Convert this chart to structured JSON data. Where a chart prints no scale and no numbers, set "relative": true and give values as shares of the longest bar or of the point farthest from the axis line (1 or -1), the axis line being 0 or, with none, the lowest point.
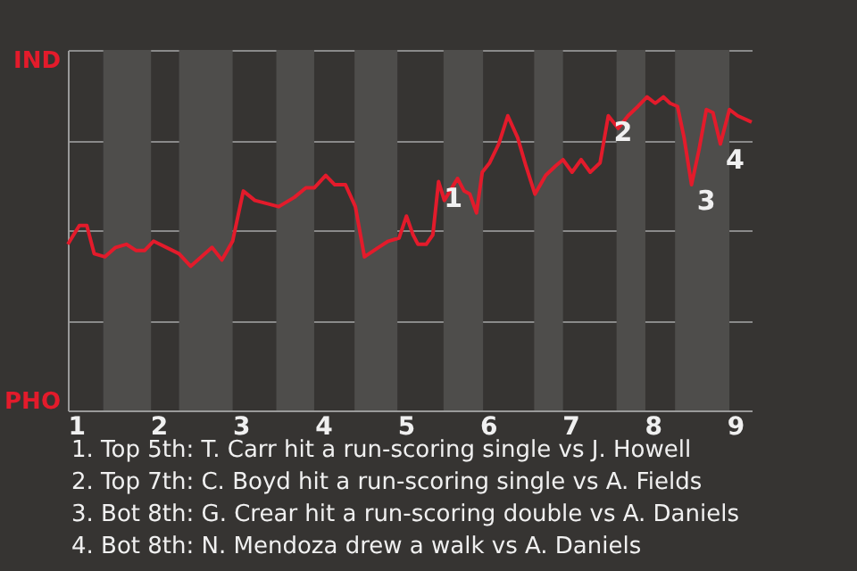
{
  "chart_data": {
    "type": "line",
    "relative": true,
    "x": [
      0.9,
      1.04,
      1.13,
      1.22,
      1.35,
      1.48,
      1.61,
      1.73,
      1.83,
      1.94,
      2.25,
      2.39,
      2.65,
      2.77,
      2.9,
      3.03,
      3.17,
      3.46,
      3.65,
      3.79,
      3.89,
      4.03,
      4.14,
      4.27,
      4.39,
      4.5,
      4.67,
      4.79,
      4.92,
      5.01,
      5.09,
      5.15,
      5.25,
      5.33,
      5.4,
      5.47,
      5.63,
      5.71,
      5.78,
      5.86,
      5.93,
      6.02,
      6.13,
      6.24,
      6.36,
      6.46,
      6.57,
      6.7,
      6.82,
      6.91,
      7.02,
      7.13,
      7.24,
      7.36,
      7.46,
      7.58,
      7.7,
      7.82,
      7.93,
      8.03,
      8.13,
      8.21,
      8.3,
      8.38,
      8.47,
      8.56,
      8.65,
      8.73,
      8.82,
      8.93,
      9.03,
      9.2
    ],
    "series": [
      {
        "color": "#e31b2b",
        "values": [
          0.53,
          0.59,
          0.59,
          0.5,
          0.49,
          0.52,
          0.53,
          0.51,
          0.51,
          0.54,
          0.5,
          0.46,
          0.52,
          0.48,
          0.54,
          0.7,
          0.67,
          0.65,
          0.68,
          0.71,
          0.71,
          0.75,
          0.72,
          0.72,
          0.65,
          0.49,
          0.52,
          0.54,
          0.55,
          0.62,
          0.56,
          0.53,
          0.53,
          0.56,
          0.73,
          0.67,
          0.74,
          0.7,
          0.69,
          0.63,
          0.76,
          0.79,
          0.85,
          0.94,
          0.87,
          0.78,
          0.69,
          0.75,
          0.78,
          0.8,
          0.76,
          0.8,
          0.76,
          0.79,
          0.94,
          0.9,
          0.94,
          0.97,
          1,
          0.98,
          1,
          0.98,
          0.97,
          0.87,
          0.72,
          0.83,
          0.96,
          0.95,
          0.85,
          0.96,
          0.94,
          0.92
        ]
      }
    ],
    "xlim": [
      0.9,
      9.2
    ],
    "xticks": [
      1,
      2,
      3,
      4,
      5,
      6,
      7,
      8,
      9
    ],
    "grid": "y",
    "bands": [
      {
        "axis": "x",
        "from": 1.33,
        "to": 1.91,
        "color": "#4e4d4b"
      },
      {
        "axis": "x",
        "from": 2.25,
        "to": 2.9,
        "color": "#4e4d4b"
      },
      {
        "axis": "x",
        "from": 3.43,
        "to": 3.89,
        "color": "#4e4d4b"
      },
      {
        "axis": "x",
        "from": 4.38,
        "to": 4.9,
        "color": "#4e4d4b"
      },
      {
        "axis": "x",
        "from": 5.46,
        "to": 5.94,
        "color": "#4e4d4b"
      },
      {
        "axis": "x",
        "from": 6.56,
        "to": 6.91,
        "color": "#4e4d4b"
      },
      {
        "axis": "x",
        "from": 7.56,
        "to": 7.91,
        "color": "#4e4d4b"
      },
      {
        "axis": "x",
        "from": 8.27,
        "to": 8.93,
        "color": "#4e4d4b"
      }
    ],
    "annotations": [
      "IND",
      "PHO",
      {
        "text": "1",
        "x": 5.4,
        "y": 0.73
      },
      {
        "text": "2",
        "x": 7.46,
        "y": 0.94
      },
      {
        "text": "3",
        "x": 8.47,
        "y": 0.72
      },
      {
        "text": "4",
        "x": 8.82,
        "y": 0.85
      },
      "1. Top 5th: T. Carr hit a run-scoring single vs J. Howell",
      "2. Top 7th: C. Boyd hit a run-scoring single vs A. Fields",
      "3. Bot 8th: G. Crear hit a run-scoring double vs A. Daniels",
      "4. Bot 8th: N. Mendoza drew a walk vs A. Daniels"
    ]
  }
}
